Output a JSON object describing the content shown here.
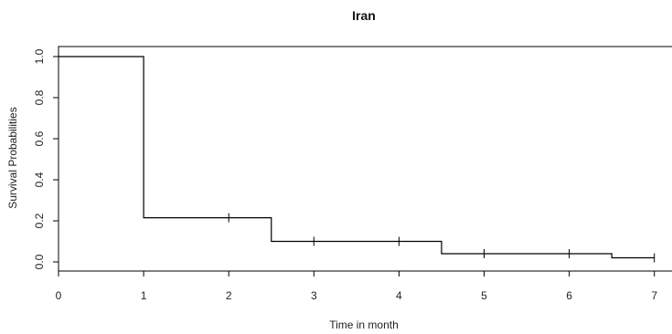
{
  "chart_data": {
    "type": "line",
    "title": "Iran",
    "xlabel": "Time in month",
    "ylabel": "Survival Probabilities",
    "xlim": [
      0,
      7.3
    ],
    "ylim": [
      0,
      1.0
    ],
    "grid": false,
    "x_ticks": [
      "0",
      "1",
      "2",
      "3",
      "4",
      "5",
      "6",
      "7"
    ],
    "y_ticks": [
      "0.0",
      "0.2",
      "0.4",
      "0.6",
      "0.8",
      "1.0"
    ],
    "series": [
      {
        "step": [
          {
            "x": 0,
            "y": 1.0
          },
          {
            "x": 1,
            "y": 0.215
          },
          {
            "x": 2.5,
            "y": 0.1
          },
          {
            "x": 4.5,
            "y": 0.04
          },
          {
            "x": 6.5,
            "y": 0.02
          }
        ],
        "end_x": 7.0,
        "censor_marks": [
          {
            "x": 2,
            "y": 0.215
          },
          {
            "x": 3,
            "y": 0.1
          },
          {
            "x": 4,
            "y": 0.1
          },
          {
            "x": 5,
            "y": 0.04
          },
          {
            "x": 6,
            "y": 0.04
          },
          {
            "x": 7,
            "y": 0.02
          }
        ]
      }
    ],
    "line_color": "#000000"
  }
}
